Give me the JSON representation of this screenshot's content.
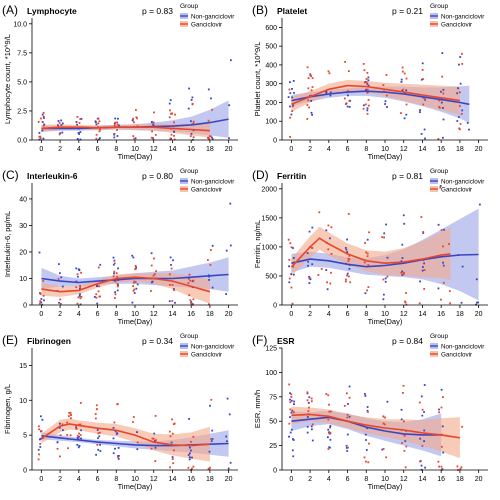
{
  "colors": {
    "non_ganciclovir": "#3a45c4",
    "ganciclovir": "#e8452a",
    "non_band": "#9aa3e6",
    "gan_band": "#f4a98a"
  },
  "chart_data": [
    {
      "panel_label": "(A)",
      "title": "Lymphocyte",
      "pvalue": "p = 0.83",
      "type": "scatter",
      "ylabel": "Lymphocyte count, *10^9/L",
      "xlabel": "Time(Day)",
      "xlim": [
        -1,
        21
      ],
      "xticks": [
        0,
        2,
        4,
        6,
        8,
        10,
        12,
        14,
        16,
        18,
        20
      ],
      "ylim": [
        0,
        10.5
      ],
      "yticks": [
        0,
        2.5,
        5.0,
        7.5,
        10.0
      ],
      "ytick_labels": [
        "0.0",
        "2.5",
        "5.0",
        "7.5",
        "10.0"
      ],
      "legend": {
        "title": "Group",
        "entries": [
          "Non-ganciclovir",
          "Ganciclovir"
        ]
      },
      "series": [
        {
          "name": "Non-ganciclovir",
          "x": [
            0,
            2,
            4,
            6,
            8,
            10,
            12,
            14,
            16,
            18,
            20
          ],
          "y": [
            1.0,
            1.0,
            1.0,
            1.05,
            1.1,
            1.1,
            1.15,
            1.2,
            1.3,
            1.5,
            1.8
          ],
          "lo": [
            0.7,
            0.8,
            0.8,
            0.85,
            0.9,
            0.85,
            0.8,
            0.75,
            0.6,
            0.4,
            0.2
          ],
          "hi": [
            1.3,
            1.2,
            1.2,
            1.25,
            1.3,
            1.35,
            1.5,
            1.7,
            2.0,
            2.6,
            3.4
          ]
        },
        {
          "name": "Ganciclovir",
          "x": [
            0,
            2,
            4,
            6,
            8,
            10,
            12,
            14,
            16,
            18
          ],
          "y": [
            1.0,
            1.1,
            1.1,
            1.05,
            1.1,
            1.1,
            1.1,
            1.0,
            0.9,
            0.8
          ],
          "lo": [
            0.7,
            0.85,
            0.9,
            0.85,
            0.9,
            0.85,
            0.8,
            0.6,
            0.4,
            0.2
          ],
          "hi": [
            1.3,
            1.35,
            1.3,
            1.25,
            1.3,
            1.35,
            1.4,
            1.4,
            1.4,
            1.4
          ]
        }
      ]
    },
    {
      "panel_label": "(B)",
      "title": "Platelet",
      "pvalue": "p = 0.21",
      "type": "scatter",
      "ylabel": "Platelet count, *10^9/L",
      "xlabel": "Time(Day)",
      "xlim": [
        -1,
        21
      ],
      "xticks": [
        0,
        2,
        4,
        6,
        8,
        10,
        12,
        14,
        16,
        18,
        20
      ],
      "ylim": [
        0,
        650
      ],
      "yticks": [
        0,
        100,
        200,
        300,
        400,
        500,
        600
      ],
      "ytick_labels": [
        "0",
        "100",
        "200",
        "300",
        "400",
        "500",
        "600"
      ],
      "legend": {
        "title": "Group",
        "entries": [
          "Non-ganciclovir",
          "Ganciclovir"
        ]
      },
      "series": [
        {
          "name": "Non-ganciclovir",
          "x": [
            0,
            2,
            4,
            6,
            8,
            10,
            12,
            14,
            16,
            18,
            19
          ],
          "y": [
            210,
            230,
            245,
            255,
            260,
            255,
            245,
            230,
            215,
            200,
            190
          ],
          "lo": [
            180,
            205,
            225,
            235,
            235,
            225,
            205,
            180,
            150,
            115,
            90
          ],
          "hi": [
            240,
            255,
            265,
            275,
            285,
            285,
            285,
            280,
            280,
            285,
            290
          ]
        },
        {
          "name": "Ganciclovir",
          "x": [
            0,
            2,
            4,
            6,
            8,
            10,
            12,
            14,
            16,
            18
          ],
          "y": [
            190,
            230,
            270,
            290,
            285,
            270,
            255,
            240,
            225,
            210
          ],
          "lo": [
            150,
            200,
            240,
            260,
            255,
            235,
            210,
            185,
            160,
            135
          ],
          "hi": [
            230,
            260,
            300,
            320,
            315,
            305,
            300,
            295,
            290,
            285
          ]
        }
      ]
    },
    {
      "panel_label": "(C)",
      "title": "Interleukin-6",
      "pvalue": "p = 0.80",
      "type": "scatter",
      "ylabel": "Interleukin-6, pg/mL",
      "xlabel": "Time(Day)",
      "xlim": [
        -1,
        21
      ],
      "xticks": [
        0,
        2,
        4,
        6,
        8,
        10,
        12,
        14,
        16,
        18,
        20
      ],
      "ylim": [
        0,
        46
      ],
      "yticks": [
        0,
        10,
        20,
        30,
        40
      ],
      "ytick_labels": [
        "0",
        "10",
        "20",
        "30",
        "40"
      ],
      "legend": {
        "title": "Group",
        "entries": [
          "Non-ganciclovir",
          "Ganciclovir"
        ]
      },
      "series": [
        {
          "name": "Non-ganciclovir",
          "x": [
            0,
            2,
            4,
            6,
            8,
            10,
            12,
            14,
            16,
            18,
            20
          ],
          "y": [
            10,
            9,
            8.5,
            9,
            9.5,
            10,
            10,
            10,
            10.5,
            11,
            11.5
          ],
          "lo": [
            6,
            7,
            7,
            7.5,
            8,
            8,
            7.5,
            7,
            6.5,
            6,
            5
          ],
          "hi": [
            14,
            11,
            10,
            10.5,
            11,
            12,
            12.5,
            13,
            14.5,
            16,
            18
          ]
        },
        {
          "name": "Ganciclovir",
          "x": [
            0,
            2,
            4,
            6,
            8,
            10,
            12,
            14,
            16,
            18
          ],
          "y": [
            6,
            5,
            5.5,
            8,
            10,
            10.5,
            10,
            9,
            7,
            5
          ],
          "lo": [
            3.5,
            3,
            4,
            6.5,
            8.5,
            9,
            8,
            6,
            3,
            0.5
          ],
          "hi": [
            8.5,
            7,
            7,
            9.5,
            11.5,
            12,
            12,
            12,
            11,
            9.5
          ]
        }
      ]
    },
    {
      "panel_label": "(D)",
      "title": "Ferritin",
      "pvalue": "p = 0.81",
      "type": "scatter",
      "ylabel": "Ferritin, ng/mL",
      "xlabel": "Time(Day)",
      "xlim": [
        -1,
        21
      ],
      "xticks": [
        0,
        2,
        4,
        6,
        8,
        10,
        12,
        14,
        16,
        18,
        20
      ],
      "ylim": [
        0,
        2100
      ],
      "yticks": [
        0,
        500,
        1000,
        1500,
        2000
      ],
      "ytick_labels": [
        "0",
        "500",
        "1000",
        "1500",
        "2000"
      ],
      "legend": {
        "title": "Group",
        "entries": [
          "Non-ganciclovir",
          "Ganciclovir"
        ]
      },
      "series": [
        {
          "name": "Non-ganciclovir",
          "x": [
            0,
            2,
            4,
            6,
            8,
            10,
            12,
            14,
            16,
            18,
            20
          ],
          "y": [
            720,
            790,
            760,
            700,
            660,
            680,
            720,
            780,
            830,
            860,
            870
          ],
          "lo": [
            560,
            660,
            640,
            580,
            520,
            500,
            480,
            440,
            360,
            240,
            80
          ],
          "hi": [
            880,
            920,
            880,
            820,
            800,
            860,
            960,
            1120,
            1300,
            1480,
            1660
          ]
        },
        {
          "name": "Ganciclovir",
          "x": [
            0,
            2,
            3,
            4,
            6,
            8,
            10,
            12,
            14,
            16,
            17
          ],
          "y": [
            650,
            1000,
            1150,
            1050,
            880,
            760,
            720,
            740,
            790,
            860,
            880
          ],
          "lo": [
            500,
            820,
            950,
            850,
            700,
            580,
            520,
            500,
            480,
            460,
            430
          ],
          "hi": [
            800,
            1180,
            1350,
            1250,
            1060,
            940,
            920,
            980,
            1100,
            1260,
            1330
          ]
        }
      ]
    },
    {
      "panel_label": "(E)",
      "title": "Fibrinogen",
      "pvalue": "p = 0.34",
      "type": "scatter",
      "ylabel": "Fibrinogen, g/L",
      "xlabel": "Time(Day)",
      "xlim": [
        -1,
        21
      ],
      "xticks": [
        0,
        2,
        4,
        6,
        8,
        10,
        12,
        14,
        16,
        18,
        20
      ],
      "ylim": [
        0,
        17.5
      ],
      "yticks": [
        0,
        5,
        10,
        15
      ],
      "ytick_labels": [
        "0",
        "5",
        "10",
        "15"
      ],
      "legend": {
        "title": "Group",
        "entries": [
          "Non-ganciclovir",
          "Ganciclovir"
        ]
      },
      "series": [
        {
          "name": "Non-ganciclovir",
          "x": [
            0,
            2,
            4,
            6,
            8,
            10,
            12,
            14,
            16,
            18,
            20
          ],
          "y": [
            4.9,
            4.6,
            4.3,
            4.0,
            3.8,
            3.6,
            3.5,
            3.5,
            3.6,
            3.7,
            3.8
          ],
          "lo": [
            4.4,
            4.2,
            4.0,
            3.7,
            3.4,
            3.1,
            2.9,
            2.7,
            2.5,
            2.2,
            1.9
          ],
          "hi": [
            5.4,
            5.0,
            4.6,
            4.3,
            4.2,
            4.1,
            4.1,
            4.3,
            4.7,
            5.2,
            5.7
          ]
        },
        {
          "name": "Ganciclovir",
          "x": [
            0,
            2,
            3,
            4,
            6,
            8,
            10,
            12,
            14,
            16,
            18
          ],
          "y": [
            4.5,
            6.3,
            6.6,
            6.4,
            6.0,
            5.7,
            5.0,
            4.0,
            3.6,
            3.5,
            3.7
          ],
          "lo": [
            3.8,
            5.4,
            5.8,
            5.7,
            5.2,
            4.8,
            4.0,
            2.8,
            2.1,
            1.6,
            1.2
          ],
          "hi": [
            5.2,
            7.2,
            7.4,
            7.1,
            6.8,
            6.6,
            6.0,
            5.2,
            5.1,
            5.4,
            6.2
          ]
        }
      ]
    },
    {
      "panel_label": "(F)",
      "title": "ESR",
      "pvalue": "p = 0.84",
      "type": "scatter",
      "ylabel": "ESR, mm/h",
      "xlabel": "Time(Day)",
      "xlim": [
        -1,
        21
      ],
      "xticks": [
        0,
        2,
        4,
        6,
        8,
        10,
        12,
        14,
        16,
        18,
        20
      ],
      "ylim": [
        0,
        125
      ],
      "yticks": [
        0,
        25,
        50,
        75,
        100,
        125
      ],
      "ytick_labels": [
        "0",
        "25",
        "50",
        "75",
        "100",
        "125"
      ],
      "legend": {
        "title": "Group",
        "entries": [
          "Non-ganciclovir",
          "Ganciclovir"
        ]
      },
      "series": [
        {
          "name": "Non-ganciclovir",
          "x": [
            0,
            2,
            4,
            6,
            8,
            10,
            12,
            14,
            16
          ],
          "y": [
            50,
            52,
            54,
            50,
            44,
            40,
            37,
            36,
            36
          ],
          "lo": [
            40,
            45,
            47,
            42,
            35,
            30,
            25,
            20,
            14
          ],
          "hi": [
            60,
            59,
            61,
            58,
            53,
            50,
            49,
            52,
            58
          ]
        },
        {
          "name": "Ganciclovir",
          "x": [
            0,
            2,
            4,
            6,
            8,
            10,
            12,
            14,
            16,
            18
          ],
          "y": [
            56,
            57,
            55,
            50,
            46,
            43,
            41,
            38,
            36,
            33
          ],
          "lo": [
            47,
            50,
            48,
            43,
            38,
            34,
            30,
            25,
            19,
            12
          ],
          "hi": [
            65,
            64,
            62,
            57,
            54,
            52,
            52,
            51,
            53,
            54
          ]
        }
      ]
    }
  ]
}
